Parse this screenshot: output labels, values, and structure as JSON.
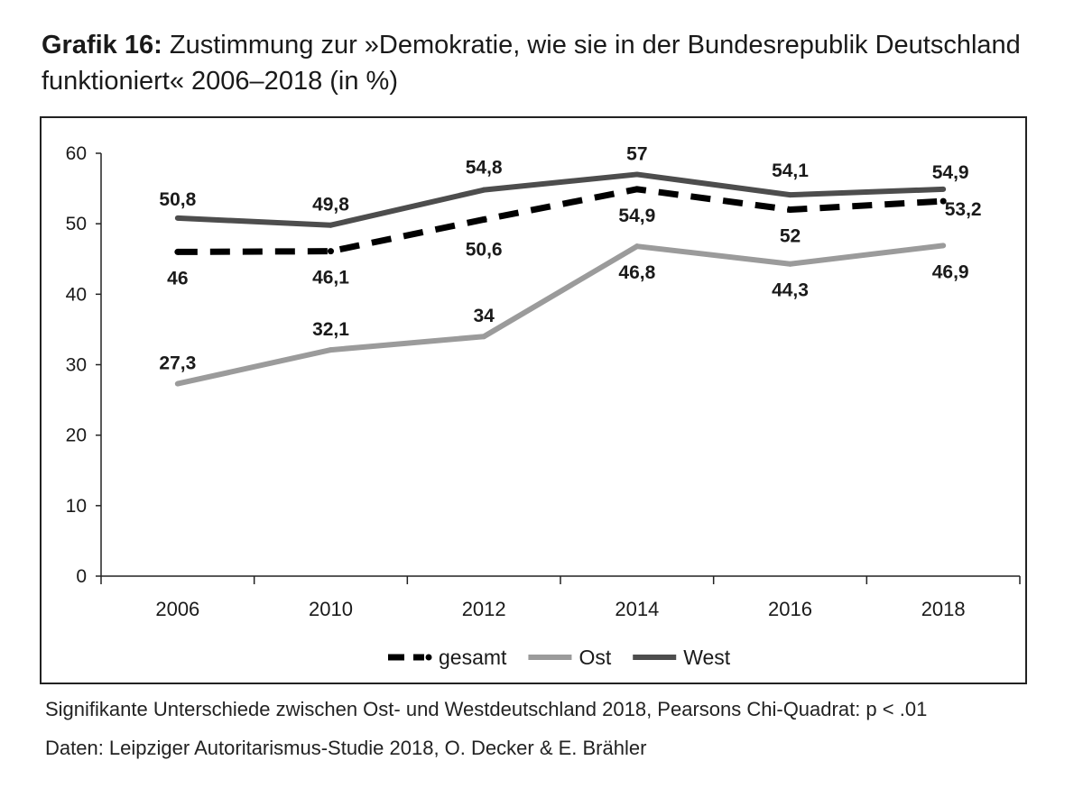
{
  "title_lead": "Grafik 16:",
  "title_text": " Zustimmung zur »Demokratie, wie sie in der Bundesrepublik Deutschland funktioniert« 2006–2018 (in %)",
  "footnote_significance": "Signifikante Unterschiede zwischen Ost- und Westdeutschland 2018, Pearsons Chi-Quadrat: p < .01",
  "footnote_source": "Daten: Leipziger Autoritarismus-Studie 2018, O. Decker & E. Brähler",
  "colors": {
    "gesamt": "#000000",
    "ost": "#9b9b9b",
    "west": "#4d4d4d",
    "axis": "#222222"
  },
  "chart_data": {
    "type": "line",
    "title": "Zustimmung zur »Demokratie, wie sie in der Bundesrepublik Deutschland funktioniert« 2006–2018 (in %)",
    "categories": [
      "2006",
      "2010",
      "2012",
      "2014",
      "2016",
      "2018"
    ],
    "yticks": [
      "0",
      "10",
      "20",
      "30",
      "40",
      "50",
      "60"
    ],
    "ylim": [
      0,
      60
    ],
    "grid": false,
    "legend_position": "bottom",
    "series": [
      {
        "name": "gesamt",
        "style": "dashed",
        "values": [
          46,
          46.1,
          50.6,
          54.9,
          52,
          53.2
        ],
        "labels": [
          "46",
          "46,1",
          "50,6",
          "54,9",
          "52",
          "53,2"
        ]
      },
      {
        "name": "Ost",
        "style": "solid",
        "values": [
          27.3,
          32.1,
          34,
          46.8,
          44.3,
          46.9
        ],
        "labels": [
          "27,3",
          "32,1",
          "34",
          "46,8",
          "44,3",
          "46,9"
        ]
      },
      {
        "name": "West",
        "style": "solid",
        "values": [
          50.8,
          49.8,
          54.8,
          57,
          54.1,
          54.9
        ],
        "labels": [
          "50,8",
          "49,8",
          "54,8",
          "57",
          "54,1",
          "54,9"
        ]
      }
    ]
  }
}
